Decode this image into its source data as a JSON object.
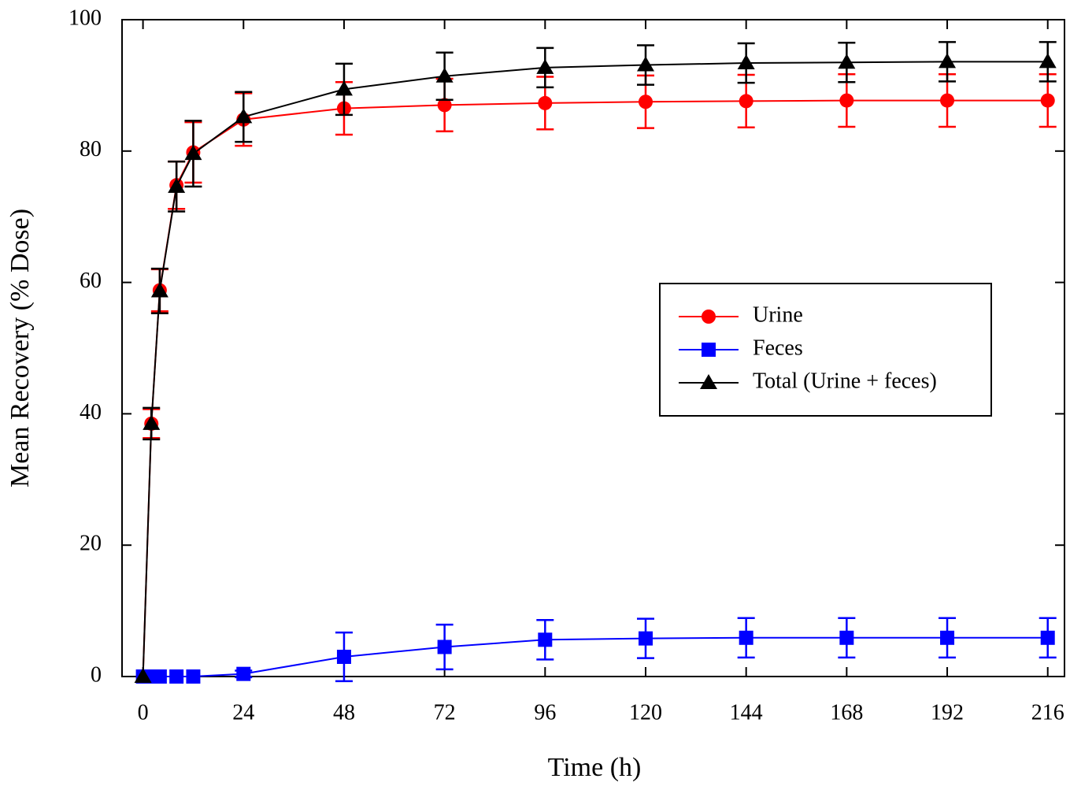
{
  "chart_data": {
    "type": "line",
    "xlabel": "Time (h)",
    "ylabel": "Mean Recovery (% Dose)",
    "x": [
      0,
      2,
      4,
      8,
      12,
      24,
      48,
      72,
      96,
      120,
      144,
      168,
      192,
      216
    ],
    "series": [
      {
        "name": "Urine",
        "color": "#ff0000",
        "marker": "circle",
        "values": [
          0,
          38.5,
          58.8,
          74.8,
          79.8,
          84.8,
          86.5,
          87.0,
          87.3,
          87.5,
          87.6,
          87.7,
          87.7,
          87.7
        ],
        "errors": [
          null,
          2.2,
          3.2,
          3.6,
          4.6,
          4.0,
          4.0,
          4.0,
          4.0,
          4.0,
          4.0,
          4.0,
          4.0,
          4.0
        ]
      },
      {
        "name": "Feces",
        "color": "#0000ff",
        "marker": "square",
        "values": [
          0,
          0,
          0,
          0,
          0,
          0.4,
          3.0,
          4.5,
          5.6,
          5.8,
          5.9,
          5.9,
          5.9,
          5.9
        ],
        "errors": [
          null,
          null,
          null,
          null,
          null,
          0.5,
          3.7,
          3.4,
          3.0,
          3.0,
          3.0,
          3.0,
          3.0,
          3.0
        ]
      },
      {
        "name": "Total (Urine + feces)",
        "color": "#000000",
        "marker": "triangle",
        "values": [
          0,
          38.5,
          58.7,
          74.6,
          79.6,
          85.2,
          89.4,
          91.4,
          92.7,
          93.1,
          93.4,
          93.5,
          93.6,
          93.6
        ],
        "errors": [
          null,
          2.4,
          3.4,
          3.8,
          5.0,
          3.8,
          3.9,
          3.6,
          3.0,
          3.0,
          3.0,
          3.0,
          3.0,
          3.0
        ]
      }
    ],
    "xlim": [
      -5,
      220
    ],
    "ylim": [
      0,
      100
    ],
    "xticks": [
      0,
      24,
      48,
      72,
      96,
      120,
      144,
      168,
      192,
      216
    ],
    "yticks": [
      0,
      20,
      40,
      60,
      80,
      100
    ],
    "legend": "right"
  }
}
